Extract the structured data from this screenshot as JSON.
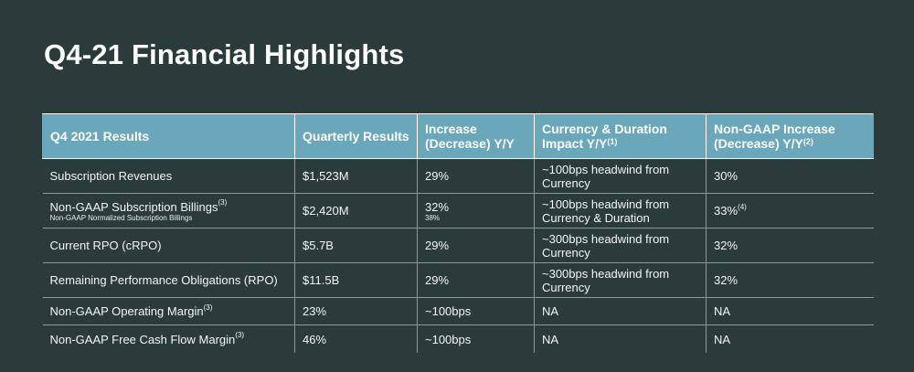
{
  "title": "Q4-21 Financial Highlights",
  "table": {
    "headers": [
      {
        "text": "Q4 2021 Results",
        "sup": ""
      },
      {
        "text": "Quarterly Results",
        "sup": ""
      },
      {
        "text": "Increase (Decrease) Y/Y",
        "sup": ""
      },
      {
        "text": "Currency & Duration Impact Y/Y",
        "sup": "(1)"
      },
      {
        "text": "Non-GAAP Increase (Decrease) Y/Y",
        "sup": "(2)"
      }
    ],
    "rows": [
      {
        "metric": "Subscription Revenues",
        "metric_sup": "",
        "metric_sub": "",
        "quarterly": "$1,523M",
        "increase": "29%",
        "increase_sub": "",
        "impact_line1": "~100bps headwind from",
        "impact_line2": "Currency",
        "nongaap": "30%",
        "nongaap_sup": ""
      },
      {
        "metric": "Non-GAAP Subscription Billings",
        "metric_sup": "(3)",
        "metric_sub": "Non-GAAP Normalized Subscription Billings",
        "quarterly": "$2,420M",
        "increase": "32%",
        "increase_sub": "38%",
        "impact_line1": "~100bps headwind from",
        "impact_line2": "Currency & Duration",
        "nongaap": "33%",
        "nongaap_sup": "(4)"
      },
      {
        "metric": "Current RPO (cRPO)",
        "metric_sup": "",
        "metric_sub": "",
        "quarterly": "$5.7B",
        "increase": "29%",
        "increase_sub": "",
        "impact_line1": "~300bps headwind from",
        "impact_line2": "Currency",
        "nongaap": "32%",
        "nongaap_sup": ""
      },
      {
        "metric": "Remaining Performance Obligations (RPO)",
        "metric_sup": "",
        "metric_sub": "",
        "quarterly": "$11.5B",
        "increase": "29%",
        "increase_sub": "",
        "impact_line1": "~300bps headwind from",
        "impact_line2": "Currency",
        "nongaap": "32%",
        "nongaap_sup": ""
      },
      {
        "metric": "Non-GAAP Operating Margin",
        "metric_sup": "(3)",
        "metric_sub": "",
        "quarterly": "23%",
        "increase": "~100bps",
        "increase_sub": "",
        "impact_line1": "NA",
        "impact_line2": "",
        "nongaap": "NA",
        "nongaap_sup": ""
      },
      {
        "metric": "Non-GAAP Free Cash Flow Margin",
        "metric_sup": "(3)",
        "metric_sub": "",
        "quarterly": "46%",
        "increase": "~100bps",
        "increase_sub": "",
        "impact_line1": "NA",
        "impact_line2": "",
        "nongaap": "NA",
        "nongaap_sup": ""
      }
    ]
  }
}
